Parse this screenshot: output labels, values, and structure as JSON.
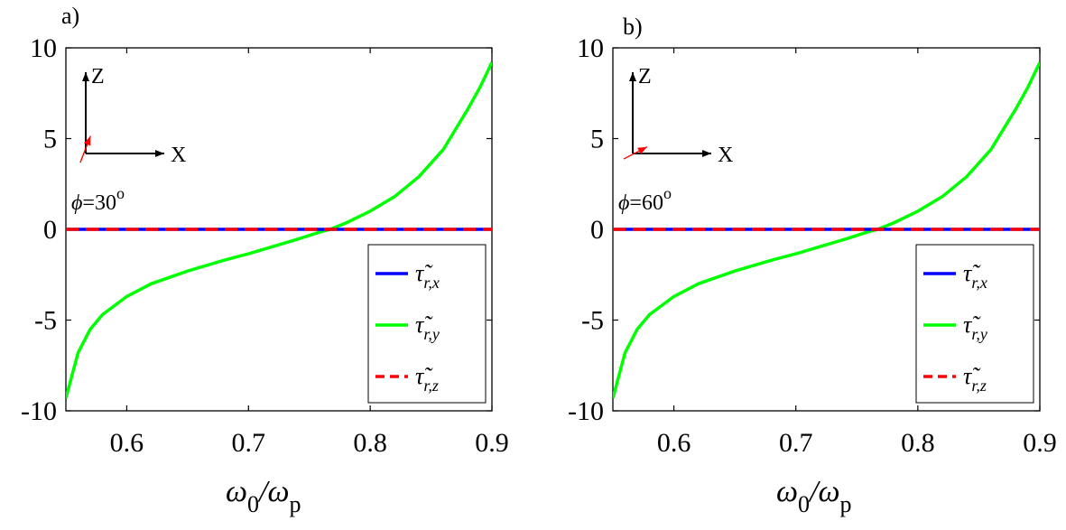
{
  "chart_data": [
    {
      "type": "line",
      "panel_label": "a)",
      "xlabel": {
        "base": "ω",
        "sub1": "0",
        "slash": "/ω",
        "sub2": "p"
      },
      "xlim": [
        0.55,
        0.9
      ],
      "ylim": [
        -10,
        10
      ],
      "xticks": [
        "0.6",
        "0.7",
        "0.8",
        "0.9"
      ],
      "yticks": [
        "10",
        "5",
        "0",
        "-5",
        "-10"
      ],
      "grid": false,
      "legend_placement": "bottom-right",
      "inset": {
        "z_label": "Z",
        "x_label": "X",
        "phi_label": "ϕ=30",
        "phi_deg": "o",
        "phi_value": 30
      },
      "series": [
        {
          "name": "τr,x",
          "legend": {
            "main": "τ̃",
            "sub": "r,x"
          },
          "color": "#0000ff",
          "style": "solid",
          "x": [
            0.55,
            0.9
          ],
          "y": [
            0,
            0
          ]
        },
        {
          "name": "τr,y",
          "legend": {
            "main": "τ̃",
            "sub": "r,y"
          },
          "color": "#00ff00",
          "style": "solid",
          "x": [
            0.55,
            0.56,
            0.57,
            0.58,
            0.6,
            0.62,
            0.65,
            0.68,
            0.7,
            0.72,
            0.74,
            0.76,
            0.767,
            0.78,
            0.8,
            0.82,
            0.84,
            0.86,
            0.88,
            0.89,
            0.9
          ],
          "y": [
            -9.3,
            -6.8,
            -5.5,
            -4.7,
            -3.7,
            -3.0,
            -2.3,
            -1.7,
            -1.35,
            -0.95,
            -0.55,
            -0.12,
            0,
            0.35,
            1.0,
            1.8,
            2.9,
            4.4,
            6.6,
            7.8,
            9.2
          ]
        },
        {
          "name": "τr,z",
          "legend": {
            "main": "τ̃",
            "sub": "r,z"
          },
          "color": "#ff0000",
          "style": "dashed",
          "x": [
            0.55,
            0.9
          ],
          "y": [
            0,
            0
          ]
        }
      ]
    },
    {
      "type": "line",
      "panel_label": "b)",
      "xlabel": {
        "base": "ω",
        "sub1": "0",
        "slash": "/ω",
        "sub2": "p"
      },
      "xlim": [
        0.55,
        0.9
      ],
      "ylim": [
        -10,
        10
      ],
      "xticks": [
        "0.6",
        "0.7",
        "0.8",
        "0.9"
      ],
      "yticks": [
        "10",
        "5",
        "0",
        "-5",
        "-10"
      ],
      "grid": false,
      "legend_placement": "bottom-right",
      "inset": {
        "z_label": "Z",
        "x_label": "X",
        "phi_label": "ϕ=60",
        "phi_deg": "o",
        "phi_value": 60
      },
      "series": [
        {
          "name": "τr,x",
          "legend": {
            "main": "τ̃",
            "sub": "r,x"
          },
          "color": "#0000ff",
          "style": "solid",
          "x": [
            0.55,
            0.9
          ],
          "y": [
            0,
            0
          ]
        },
        {
          "name": "τr,y",
          "legend": {
            "main": "τ̃",
            "sub": "r,y"
          },
          "color": "#00ff00",
          "style": "solid",
          "x": [
            0.55,
            0.56,
            0.57,
            0.58,
            0.6,
            0.62,
            0.65,
            0.68,
            0.7,
            0.72,
            0.74,
            0.76,
            0.767,
            0.78,
            0.8,
            0.82,
            0.84,
            0.86,
            0.88,
            0.89,
            0.9
          ],
          "y": [
            -9.3,
            -6.8,
            -5.5,
            -4.7,
            -3.7,
            -3.0,
            -2.3,
            -1.7,
            -1.35,
            -0.95,
            -0.55,
            -0.12,
            0,
            0.35,
            1.0,
            1.8,
            2.9,
            4.4,
            6.6,
            7.8,
            9.2
          ]
        },
        {
          "name": "τr,z",
          "legend": {
            "main": "τ̃",
            "sub": "r,z"
          },
          "color": "#ff0000",
          "style": "dashed",
          "x": [
            0.55,
            0.9
          ],
          "y": [
            0,
            0
          ]
        }
      ]
    }
  ]
}
